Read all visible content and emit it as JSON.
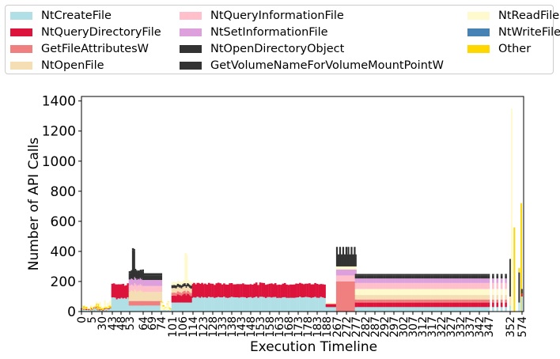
{
  "chart_data": {
    "type": "bar",
    "stacked": true,
    "xlabel": "Execution Timeline",
    "ylabel": "Number of API Calls",
    "ylim": [
      0,
      1430
    ],
    "y_ticks": [
      0,
      200,
      400,
      600,
      800,
      1000,
      1200,
      1400
    ],
    "grid": false,
    "legend_placement": "top",
    "x_tick_labels": [
      "0",
      "5",
      "30",
      "43",
      "48",
      "53",
      "64",
      "69",
      "74",
      "101",
      "106",
      "114",
      "123",
      "128",
      "133",
      "138",
      "143",
      "148",
      "153",
      "158",
      "163",
      "168",
      "173",
      "178",
      "183",
      "188",
      "267",
      "272",
      "277",
      "282",
      "287",
      "292",
      "297",
      "302",
      "307",
      "312",
      "317",
      "322",
      "327",
      "332",
      "337",
      "342",
      "347",
      "352",
      "574"
    ],
    "series": [
      {
        "name": "NtCreateFile",
        "color": "#b0e0e6"
      },
      {
        "name": "NtQueryDirectoryFile",
        "color": "#dc143c"
      },
      {
        "name": "GetFileAttributesW",
        "color": "#f08080"
      },
      {
        "name": "NtOpenFile",
        "color": "#f5deb3"
      },
      {
        "name": "NtQueryInformationFile",
        "color": "#ffc0cb"
      },
      {
        "name": "NtSetInformationFile",
        "color": "#dda0dd"
      },
      {
        "name": "NtOpenDirectoryObject",
        "color": "#333333"
      },
      {
        "name": "GetVolumeNameForVolumeMountPointW",
        "color": "#333333"
      },
      {
        "name": "NtReadFile",
        "color": "#fffacd"
      },
      {
        "name": "NtWriteFile",
        "color": "#4682b4"
      },
      {
        "name": "Other",
        "color": "#ffd700"
      }
    ],
    "segments": [
      {
        "from": "0",
        "to": "30",
        "approx_total": 40,
        "composition": "mostly NtCreateFile with small NtQueryDirectoryFile, Other, NtReadFile; peaks up to about 130"
      },
      {
        "from": "43",
        "to": "53",
        "approx_total": 180,
        "composition": "NtCreateFile ~90, NtQueryDirectoryFile ~90"
      },
      {
        "from": "53",
        "to": "64",
        "approx_total": 300,
        "composition": "peak about 450; NtCreateFile, GetFileAttributesW, NtOpenFile, NtQueryInformationFile, NtSetInformationFile, NtOpenDirectoryObject"
      },
      {
        "from": "64",
        "to": "74",
        "approx_total": 250,
        "composition": "NtCreateFile ~40, GetFileAttributesW ~30, NtOpenFile ~60, NtQueryInformationFile ~40, NtSetInformationFile ~40, NtOpenDirectoryObject ~40"
      },
      {
        "from": "74",
        "to": "114",
        "approx_total": 150,
        "composition": "mixed; NtReadFile spike about 340"
      },
      {
        "from": "114",
        "to": "188",
        "approx_total": 190,
        "composition": "NtCreateFile ~95, NtQueryDirectoryFile ~90"
      },
      {
        "from": "188",
        "to": "267",
        "approx_total": 60,
        "composition": "dip"
      },
      {
        "from": "267",
        "to": "277",
        "approx_total": 450,
        "composition": "GetFileAttributesW ~200, NtQueryInformationFile, NtSetInformationFile, NtOpenDirectoryObject"
      },
      {
        "from": "277",
        "to": "352",
        "approx_total": 250,
        "composition": "NtCreateFile ~30, NtQueryDirectoryFile ~30, GetFileAttributesW ~20, NtOpenFile ~70, NtQueryInformationFile ~40, NtSetInformationFile ~30, NtOpenDirectoryObject ~30"
      },
      {
        "from": "352",
        "to": "574",
        "approx_total": 700,
        "composition": "spikes: NtReadFile about 1350, Other about 720, NtOpenDirectoryObject about 350"
      }
    ]
  }
}
